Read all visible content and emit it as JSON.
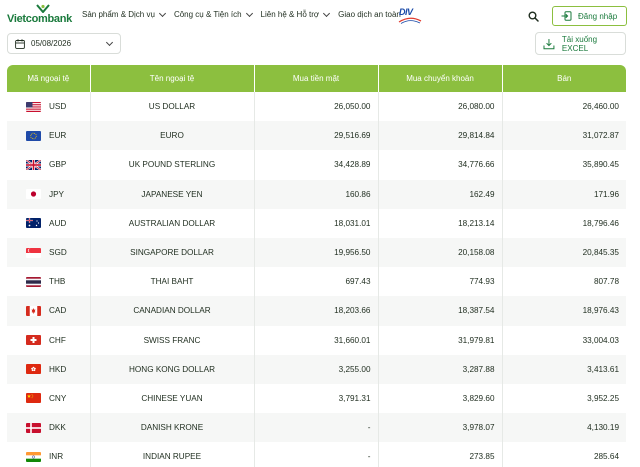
{
  "brand": {
    "name": "Vietcombank",
    "color": "#1a7a3c",
    "accent": "#8cbf3f"
  },
  "nav": [
    {
      "label": "Sản phẩm & Dịch vụ",
      "has_dropdown": true
    },
    {
      "label": "Công cụ & Tiện ích",
      "has_dropdown": true
    },
    {
      "label": "Liên hệ & Hỗ trợ",
      "has_dropdown": true
    },
    {
      "label": "Giao dịch an toàn",
      "has_dropdown": false
    }
  ],
  "partner_logo": {
    "text": "DIV"
  },
  "header": {
    "search_icon": "search-icon",
    "login_label": "Đăng nhập"
  },
  "toolbar": {
    "date_value": "05/08/2026",
    "download_label": "Tải xuống EXCEL"
  },
  "table": {
    "headers": [
      "Mã ngoại tệ",
      "Tên ngoại tệ",
      "Mua tiền mặt",
      "Mua chuyển khoản",
      "Bán"
    ],
    "rows": [
      {
        "code": "USD",
        "flag": "us",
        "name": "US DOLLAR",
        "cash": "26,050.00",
        "transfer": "26,080.00",
        "sell": "26,460.00"
      },
      {
        "code": "EUR",
        "flag": "eu",
        "name": "EURO",
        "cash": "29,516.69",
        "transfer": "29,814.84",
        "sell": "31,072.87"
      },
      {
        "code": "GBP",
        "flag": "gb",
        "name": "UK POUND STERLING",
        "cash": "34,428.89",
        "transfer": "34,776.66",
        "sell": "35,890.45"
      },
      {
        "code": "JPY",
        "flag": "jp",
        "name": "JAPANESE YEN",
        "cash": "160.86",
        "transfer": "162.49",
        "sell": "171.96"
      },
      {
        "code": "AUD",
        "flag": "au",
        "name": "AUSTRALIAN DOLLAR",
        "cash": "18,031.01",
        "transfer": "18,213.14",
        "sell": "18,796.46"
      },
      {
        "code": "SGD",
        "flag": "sg",
        "name": "SINGAPORE DOLLAR",
        "cash": "19,956.50",
        "transfer": "20,158.08",
        "sell": "20,845.35"
      },
      {
        "code": "THB",
        "flag": "th",
        "name": "THAI BAHT",
        "cash": "697.43",
        "transfer": "774.93",
        "sell": "807.78"
      },
      {
        "code": "CAD",
        "flag": "ca",
        "name": "CANADIAN DOLLAR",
        "cash": "18,203.66",
        "transfer": "18,387.54",
        "sell": "18,976.43"
      },
      {
        "code": "CHF",
        "flag": "ch",
        "name": "SWISS FRANC",
        "cash": "31,660.01",
        "transfer": "31,979.81",
        "sell": "33,004.03"
      },
      {
        "code": "HKD",
        "flag": "hk",
        "name": "HONG KONG DOLLAR",
        "cash": "3,255.00",
        "transfer": "3,287.88",
        "sell": "3,413.61"
      },
      {
        "code": "CNY",
        "flag": "cn",
        "name": "CHINESE YUAN",
        "cash": "3,791.31",
        "transfer": "3,829.60",
        "sell": "3,952.25"
      },
      {
        "code": "DKK",
        "flag": "dk",
        "name": "DANISH KRONE",
        "cash": "-",
        "transfer": "3,978.07",
        "sell": "4,130.19"
      },
      {
        "code": "INR",
        "flag": "in",
        "name": "INDIAN RUPEE",
        "cash": "-",
        "transfer": "273.85",
        "sell": "285.64"
      }
    ]
  }
}
